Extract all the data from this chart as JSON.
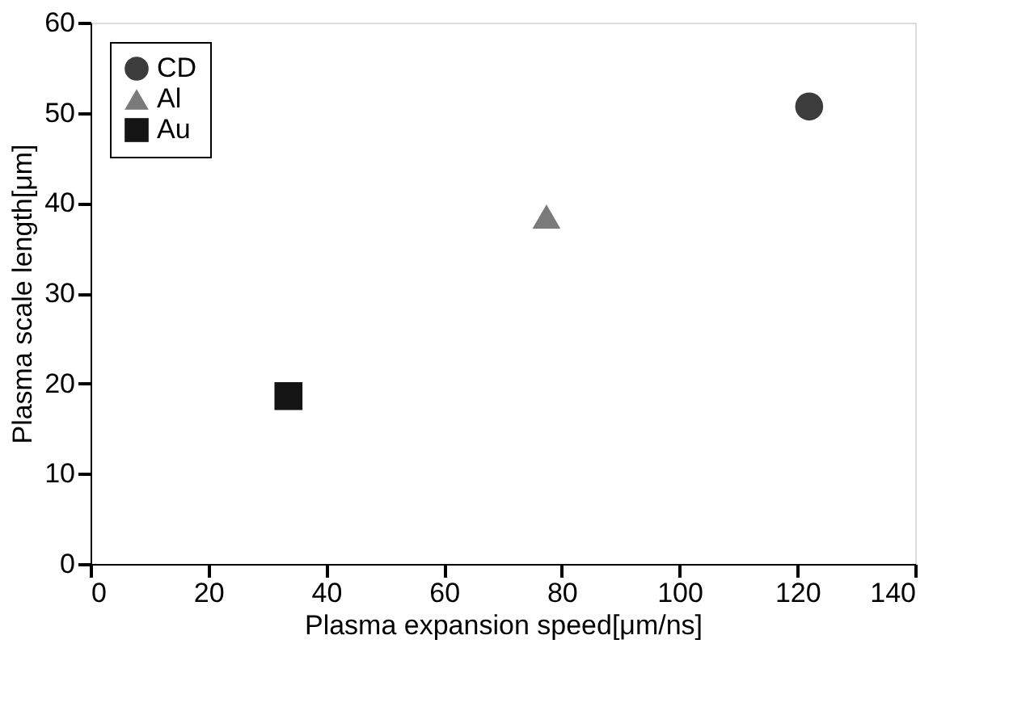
{
  "chart_data": {
    "type": "scatter",
    "xlabel": "Plasma expansion speed[μm/ns]",
    "ylabel": "Plasma scale length[μm]",
    "xlim": [
      0,
      140
    ],
    "xticks": [
      0,
      20,
      40,
      60,
      80,
      100,
      120,
      140
    ],
    "ylim": [
      0,
      60
    ],
    "yticks": [
      0,
      10,
      20,
      30,
      40,
      50,
      60
    ],
    "grid": false,
    "legend": "top left",
    "series": [
      {
        "name": "CD",
        "color": "#3c3c3c",
        "marker": "circle",
        "x": [
          122
        ],
        "values": [
          50.7
        ]
      },
      {
        "name": "Al",
        "color": "#7a7a7a",
        "marker": "triangle",
        "x": [
          77.4
        ],
        "values": [
          38.5
        ]
      },
      {
        "name": "Au",
        "color": "#141414",
        "marker": "square",
        "x": [
          33.6
        ],
        "values": [
          18.6
        ]
      }
    ]
  }
}
